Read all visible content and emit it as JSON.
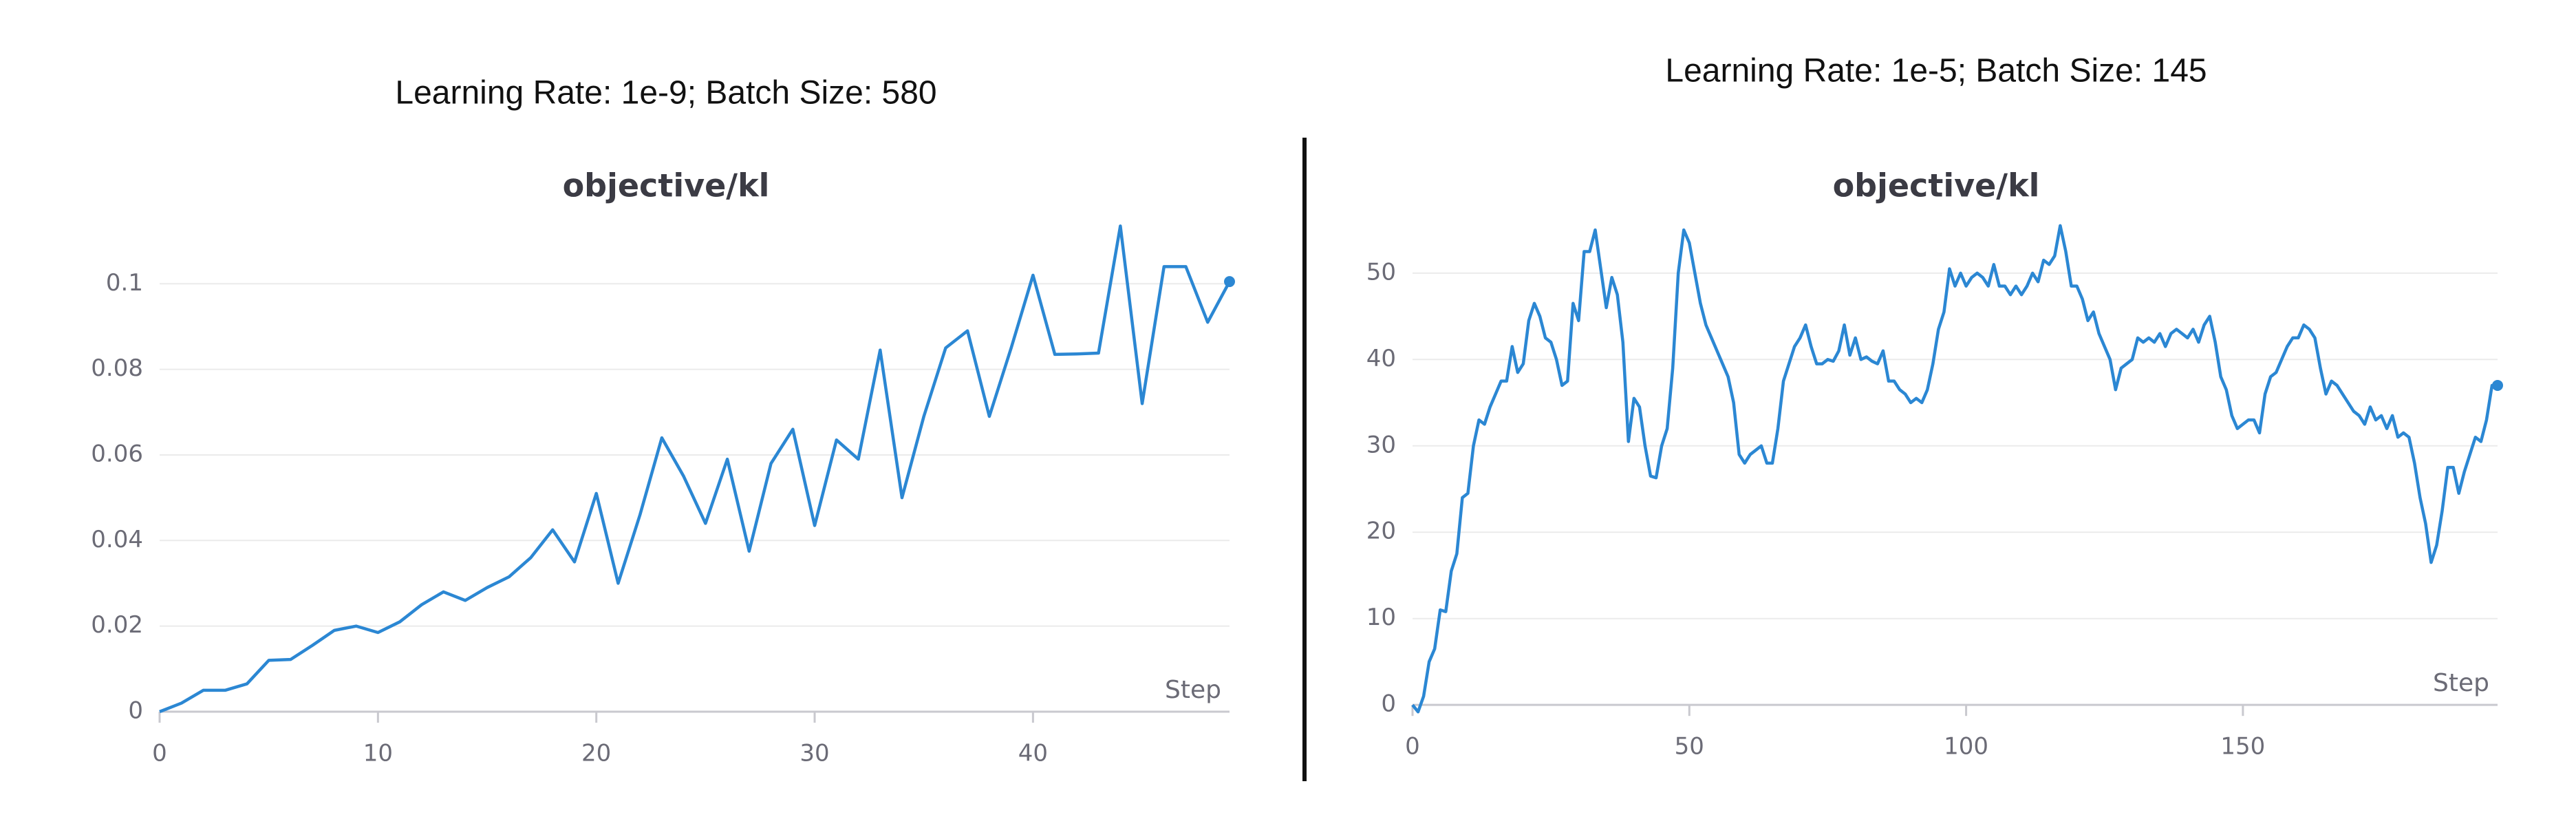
{
  "chart_data": [
    {
      "type": "line",
      "header": "Learning Rate: 1e-9; Batch Size: 580",
      "title": "objective/kl",
      "xlabel": "Step",
      "x": [
        0,
        1,
        2,
        3,
        4,
        5,
        6,
        7,
        8,
        9,
        10,
        11,
        12,
        13,
        14,
        15,
        16,
        17,
        18,
        19,
        20,
        21,
        22,
        23,
        24,
        25,
        26,
        27,
        28,
        29,
        30,
        31,
        32,
        33,
        34,
        35,
        36,
        37,
        38,
        39,
        40,
        41,
        42,
        43,
        44,
        45,
        46,
        47,
        48,
        49
      ],
      "series": [
        {
          "name": "objective/kl",
          "color": "#2b87d3",
          "values": [
            0,
            0.002,
            0.005,
            0.005,
            0.0065,
            0.012,
            0.0122,
            0.0155,
            0.019,
            0.02,
            0.0185,
            0.021,
            0.025,
            0.028,
            0.026,
            0.029,
            0.0315,
            0.036,
            0.0425,
            0.035,
            0.051,
            0.03,
            0.046,
            0.064,
            0.055,
            0.044,
            0.059,
            0.0375,
            0.058,
            0.066,
            0.0435,
            0.0635,
            0.059,
            0.0845,
            0.05,
            0.069,
            0.085,
            0.089,
            0.069,
            0.085,
            0.102,
            0.0835,
            0.0836,
            0.0838,
            0.1135,
            0.072,
            0.104,
            0.104,
            0.091,
            0.1005
          ]
        }
      ],
      "xlim": [
        0,
        49
      ],
      "xticks": [
        0,
        10,
        20,
        30,
        40
      ],
      "ylim": [
        0,
        0.115
      ],
      "yticks": [
        0,
        0.02,
        0.04,
        0.06,
        0.08,
        0.1
      ],
      "grid": true
    },
    {
      "type": "line",
      "header": "Learning Rate: 1e-5; Batch Size: 145",
      "title": "objective/kl",
      "xlabel": "Step",
      "x": [
        0,
        1,
        2,
        3,
        4,
        5,
        6,
        7,
        8,
        9,
        10,
        11,
        12,
        13,
        14,
        15,
        16,
        17,
        18,
        19,
        20,
        21,
        22,
        23,
        24,
        25,
        26,
        27,
        28,
        29,
        30,
        31,
        32,
        33,
        34,
        35,
        36,
        37,
        38,
        39,
        40,
        41,
        42,
        43,
        44,
        45,
        46,
        47,
        48,
        49,
        50,
        51,
        52,
        53,
        54,
        55,
        56,
        57,
        58,
        59,
        60,
        61,
        62,
        63,
        64,
        65,
        66,
        67,
        68,
        69,
        70,
        71,
        72,
        73,
        74,
        75,
        76,
        77,
        78,
        79,
        80,
        81,
        82,
        83,
        84,
        85,
        86,
        87,
        88,
        89,
        90,
        91,
        92,
        93,
        94,
        95,
        96,
        97,
        98,
        99,
        100,
        101,
        102,
        103,
        104,
        105,
        106,
        107,
        108,
        109,
        110,
        111,
        112,
        113,
        114,
        115,
        116,
        117,
        118,
        119,
        120,
        121,
        122,
        123,
        124,
        125,
        126,
        127,
        128,
        129,
        130,
        131,
        132,
        133,
        134,
        135,
        136,
        137,
        138,
        139,
        140,
        141,
        142,
        143,
        144,
        145,
        146,
        147,
        148,
        149,
        150,
        151,
        152,
        153,
        154,
        155,
        156,
        157,
        158,
        159,
        160,
        161,
        162,
        163,
        164,
        165,
        166,
        167,
        168,
        169,
        170,
        171,
        172,
        173,
        174,
        175,
        176,
        177,
        178,
        179,
        180,
        181,
        182,
        183,
        184,
        185,
        186,
        187,
        188,
        189,
        190,
        191,
        192,
        193,
        194,
        195,
        196
      ],
      "series": [
        {
          "name": "objective/kl",
          "color": "#2b87d3",
          "values": [
            0,
            -0.8,
            1,
            5,
            6.5,
            11,
            10.8,
            15.5,
            17.5,
            24,
            24.5,
            30,
            33,
            32.5,
            34.5,
            36,
            37.5,
            37.5,
            41.5,
            38.5,
            39.5,
            44.5,
            46.5,
            45,
            42.5,
            42,
            40,
            37,
            37.5,
            46.5,
            44.5,
            52.5,
            52.5,
            55,
            50.5,
            46,
            49.5,
            47.5,
            42,
            30.5,
            35.5,
            34.5,
            30,
            26.5,
            26.3,
            30,
            32,
            39,
            50,
            55,
            53.5,
            50,
            46.5,
            44,
            42.5,
            41,
            39.5,
            38,
            35,
            29,
            28,
            29,
            29.5,
            30,
            28,
            28,
            32,
            37.5,
            39.5,
            41.5,
            42.5,
            44,
            41.5,
            39.5,
            39.5,
            40,
            39.8,
            41,
            44,
            40.5,
            42.5,
            40,
            40.3,
            39.8,
            39.5,
            41,
            37.5,
            37.5,
            36.5,
            36,
            35,
            35.5,
            35,
            36.5,
            39.5,
            43.5,
            45.5,
            50.5,
            48.5,
            50,
            48.5,
            49.5,
            50,
            49.5,
            48.5,
            51,
            48.5,
            48.5,
            47.5,
            48.5,
            47.5,
            48.5,
            50,
            49,
            51.5,
            51,
            52,
            55.5,
            52.5,
            48.5,
            48.5,
            47,
            44.5,
            45.5,
            43,
            41.5,
            40,
            36.5,
            39,
            39.5,
            40,
            42.5,
            42,
            42.5,
            42,
            43,
            41.5,
            43,
            43.5,
            43,
            42.5,
            43.5,
            42,
            44,
            45,
            42,
            38,
            36.5,
            33.5,
            32,
            32.5,
            33,
            33,
            31.5,
            36,
            38,
            38.5,
            40,
            41.5,
            42.5,
            42.5,
            44,
            43.5,
            42.5,
            39,
            36,
            37.5,
            37,
            36,
            35,
            34,
            33.5,
            32.5,
            34.5,
            33,
            33.5,
            32,
            33.5,
            31,
            31.5,
            31,
            28,
            24,
            21,
            16.5,
            18.5,
            22.5,
            27.5,
            27.5,
            24.5,
            27,
            29,
            31,
            30.5,
            33,
            37,
            37
          ]
        }
      ],
      "xlim": [
        0,
        196
      ],
      "xticks": [
        0,
        50,
        100,
        150
      ],
      "ylim": [
        -1.5,
        57
      ],
      "yticks": [
        0,
        10,
        20,
        30,
        40,
        50
      ],
      "grid": true
    }
  ]
}
